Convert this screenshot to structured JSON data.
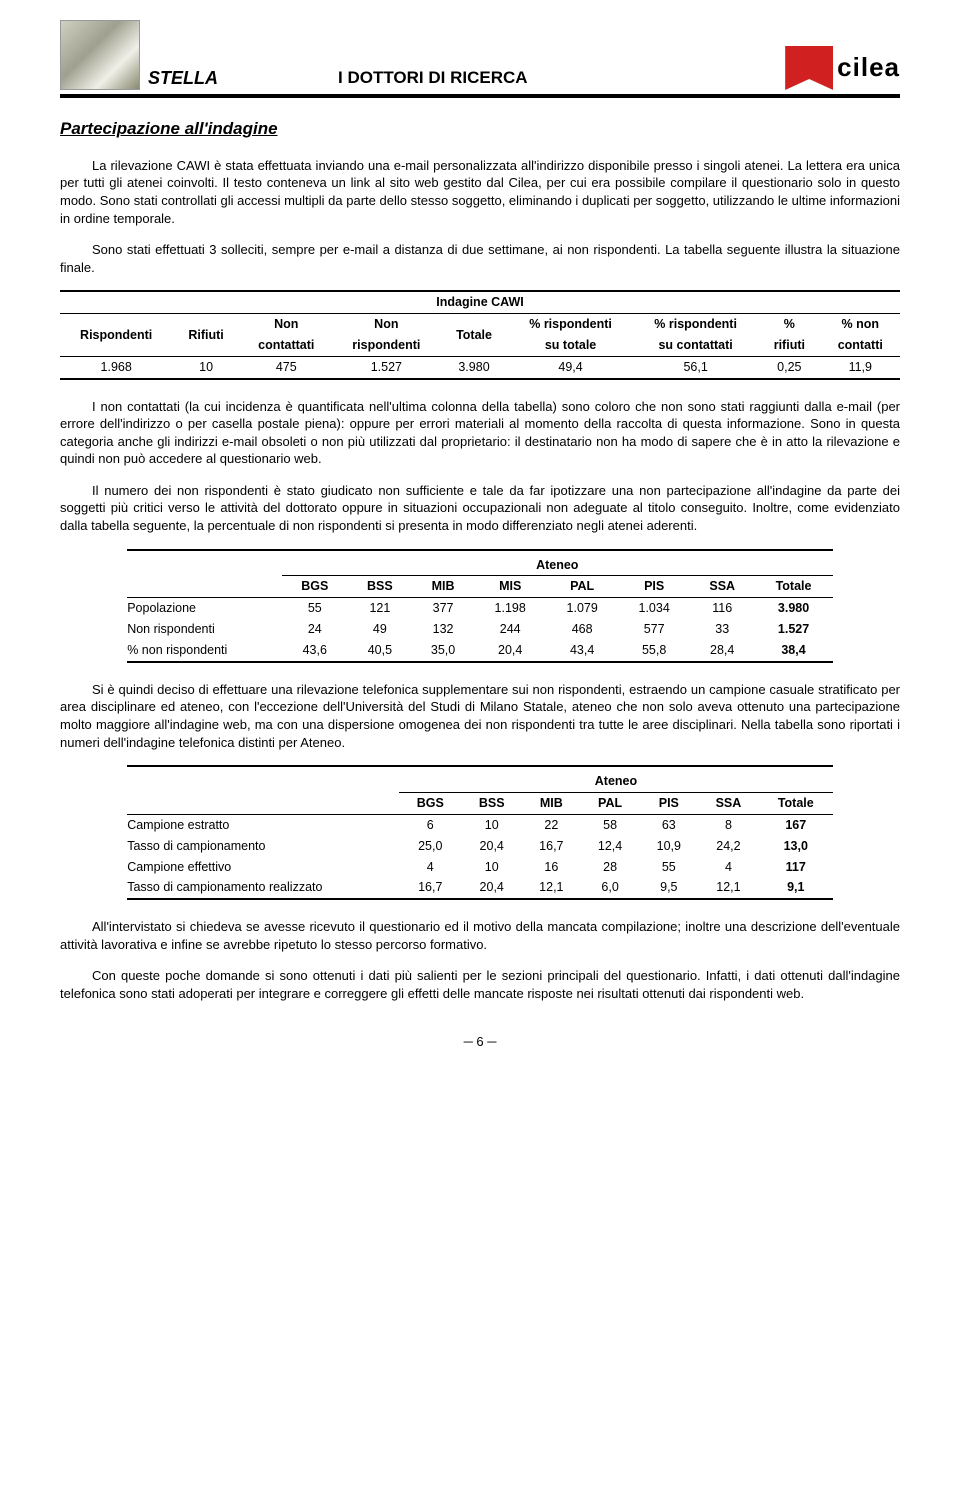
{
  "header": {
    "title": "STELLA",
    "subtitle": "I DOTTORI DI RICERCA",
    "logo_text": "cilea",
    "logo_red": "#d02020"
  },
  "section_title": "Partecipazione all'indagine",
  "para1": "La rilevazione CAWI è stata effettuata inviando una e-mail personalizzata all'indirizzo disponibile presso i singoli atenei. La lettera era unica per tutti gli atenei coinvolti. Il testo conteneva un link al sito web gestito dal Cilea, per cui era possibile compilare il questionario solo in questo modo. Sono stati controllati gli accessi multipli da parte dello stesso soggetto, eliminando i duplicati per soggetto, utilizzando le ultime informazioni in ordine temporale.",
  "para2": "Sono stati effettuati 3 solleciti, sempre per e-mail a distanza di due settimane, ai non rispondenti. La tabella seguente illustra la situazione finale.",
  "table1": {
    "super": "Indagine CAWI",
    "cols": [
      "Rispondenti",
      "Rifiuti",
      "Non contattati",
      "Non rispondenti",
      "Totale",
      "% rispondenti su totale",
      "% rispondenti su contattati",
      "% rifiuti",
      "% non contatti"
    ],
    "row": [
      "1.968",
      "10",
      "475",
      "1.527",
      "3.980",
      "49,4",
      "56,1",
      "0,25",
      "11,9"
    ]
  },
  "para3": "I non contattati (la cui incidenza è quantificata nell'ultima colonna della tabella) sono coloro che non sono stati raggiunti dalla e-mail (per errore dell'indirizzo o per casella postale piena): oppure per errori materiali al momento della raccolta di questa informazione. Sono in questa categoria anche gli indirizzi e-mail obsoleti o non più utilizzati dal proprietario: il destinatario non ha modo di sapere che è in atto la rilevazione e quindi non può accedere al questionario web.",
  "para4": "Il numero dei non rispondenti è stato giudicato non sufficiente e tale da far ipotizzare una non partecipazione all'indagine da parte dei soggetti più critici verso le attività del dottorato oppure in situazioni occupazionali non adeguate al titolo conseguito. Inoltre, come evidenziato dalla tabella seguente, la percentuale di non rispondenti si presenta in modo differenziato negli atenei aderenti.",
  "table2": {
    "super": "Ateneo",
    "cols": [
      "BGS",
      "BSS",
      "MIB",
      "MIS",
      "PAL",
      "PIS",
      "SSA",
      "Totale"
    ],
    "rows": [
      {
        "label": "Popolazione",
        "cells": [
          "55",
          "121",
          "377",
          "1.198",
          "1.079",
          "1.034",
          "116",
          "3.980"
        ],
        "bold_last": true
      },
      {
        "label": "Non rispondenti",
        "cells": [
          "24",
          "49",
          "132",
          "244",
          "468",
          "577",
          "33",
          "1.527"
        ],
        "bold_last": true
      },
      {
        "label": "% non rispondenti",
        "cells": [
          "43,6",
          "40,5",
          "35,0",
          "20,4",
          "43,4",
          "55,8",
          "28,4",
          "38,4"
        ],
        "bold_last": true
      }
    ]
  },
  "para5": "Si è quindi deciso di effettuare una rilevazione telefonica supplementare sui non rispondenti, estraendo un campione casuale stratificato per area disciplinare ed ateneo, con l'eccezione dell'Università del Studi di Milano Statale, ateneo che non solo aveva ottenuto una partecipazione molto maggiore all'indagine web, ma con una dispersione omogenea dei non rispondenti tra tutte le aree disciplinari. Nella tabella sono riportati i numeri dell'indagine telefonica distinti per Ateneo.",
  "table3": {
    "super": "Ateneo",
    "cols": [
      "BGS",
      "BSS",
      "MIB",
      "PAL",
      "PIS",
      "SSA",
      "Totale"
    ],
    "rows": [
      {
        "label": "Campione estratto",
        "cells": [
          "6",
          "10",
          "22",
          "58",
          "63",
          "8",
          "167"
        ],
        "bold_last": true
      },
      {
        "label": "Tasso di campionamento",
        "cells": [
          "25,0",
          "20,4",
          "16,7",
          "12,4",
          "10,9",
          "24,2",
          "13,0"
        ],
        "bold_last": true
      },
      {
        "label": "Campione effettivo",
        "cells": [
          "4",
          "10",
          "16",
          "28",
          "55",
          "4",
          "117"
        ],
        "bold_last": true
      },
      {
        "label": "Tasso di campionamento realizzato",
        "cells": [
          "16,7",
          "20,4",
          "12,1",
          "6,0",
          "9,5",
          "12,1",
          "9,1"
        ],
        "bold_last": true
      }
    ]
  },
  "para6": "All'intervistato si chiedeva se avesse ricevuto il questionario ed il motivo della mancata compilazione; inoltre una descrizione dell'eventuale attività lavorativa e infine se avrebbe ripetuto lo stesso percorso formativo.",
  "para7": "Con queste poche domande si sono ottenuti i dati più salienti per le sezioni principali del questionario. Infatti, i dati ottenuti dall'indagine telefonica sono stati adoperati per integrare e correggere gli effetti delle mancate risposte nei risultati ottenuti dai rispondenti web.",
  "page_number": "─ 6 ─"
}
